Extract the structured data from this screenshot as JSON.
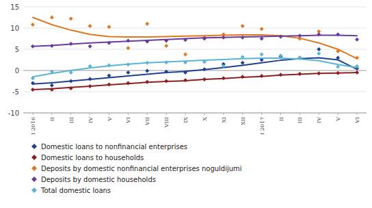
{
  "chart_data": {
    "type": "line",
    "categories": [
      "I 2016",
      "II",
      "III",
      "IV",
      "V",
      "VI",
      "VII",
      "VIII",
      "IX",
      "X",
      "XI",
      "XII",
      "I 2017",
      "II",
      "III",
      "IV",
      "V",
      "VI"
    ],
    "series": [
      {
        "name": "Domestic loans to nonfinancial enterprises",
        "color": "#1f3f8f",
        "marker": "diamond",
        "values": [
          -3.2,
          -2.9,
          -2.5,
          -2.1,
          -1.7,
          -1.3,
          -0.9,
          -0.5,
          -0.2,
          0.2,
          0.7,
          1.2,
          1.8,
          2.4,
          2.8,
          3.0,
          2.5,
          0.3
        ],
        "points": [
          -3.0,
          -3.5,
          -2.5,
          -2.0,
          -1.2,
          -0.5,
          -0.1,
          -0.3,
          -0.5,
          0.3,
          1.5,
          1.8,
          2.5,
          3.3,
          3.0,
          5.0,
          3.0,
          0.5
        ]
      },
      {
        "name": "Domestic loans to households",
        "color": "#8b2020",
        "marker": "diamond",
        "values": [
          -4.5,
          -4.3,
          -4.0,
          -3.7,
          -3.4,
          -3.1,
          -2.8,
          -2.6,
          -2.4,
          -2.1,
          -1.9,
          -1.6,
          -1.4,
          -1.1,
          -0.9,
          -0.7,
          -0.6,
          -0.5
        ],
        "points": [
          -4.5,
          -4.5,
          -4.2,
          -3.7,
          -3.3,
          -3.0,
          -2.7,
          -2.5,
          -2.3,
          -2.1,
          -1.8,
          -1.5,
          -1.3,
          -1.0,
          -0.8,
          -0.7,
          -0.6,
          -0.5
        ]
      },
      {
        "name": "Deposits by domestic nonfinancial enterprises noguldijumi",
        "color": "#e07820",
        "marker": "diamond",
        "values": [
          12.5,
          10.8,
          9.5,
          8.5,
          8.0,
          7.9,
          7.9,
          8.0,
          8.1,
          8.2,
          8.3,
          8.4,
          8.4,
          8.2,
          7.6,
          6.5,
          5.0,
          2.8
        ],
        "points": [
          10.8,
          12.5,
          12.2,
          10.5,
          10.3,
          5.3,
          11.0,
          5.8,
          3.8,
          7.8,
          8.5,
          10.5,
          9.8,
          8.0,
          7.5,
          9.2,
          4.5,
          3.0
        ]
      },
      {
        "name": "Deposits by domestic households",
        "color": "#6b3a9a",
        "marker": "diamond",
        "values": [
          5.7,
          5.9,
          6.2,
          6.5,
          6.7,
          6.9,
          7.1,
          7.3,
          7.5,
          7.7,
          7.8,
          7.9,
          8.0,
          8.1,
          8.2,
          8.3,
          8.3,
          8.2
        ],
        "points": [
          5.7,
          5.8,
          6.3,
          5.7,
          6.5,
          7.0,
          6.8,
          7.0,
          7.2,
          7.5,
          7.8,
          7.8,
          7.5,
          8.0,
          8.2,
          8.5,
          8.5,
          7.3
        ]
      },
      {
        "name": "Total domestic loans",
        "color": "#5ab4d4",
        "marker": "diamond",
        "values": [
          -1.5,
          -0.7,
          0.0,
          0.6,
          1.1,
          1.5,
          1.8,
          2.0,
          2.2,
          2.4,
          2.6,
          2.8,
          2.9,
          2.9,
          2.7,
          2.3,
          1.4,
          0.7
        ],
        "points": [
          -1.8,
          -0.3,
          -0.5,
          1.0,
          1.2,
          1.4,
          1.8,
          1.9,
          1.9,
          2.0,
          1.0,
          3.2,
          3.8,
          3.5,
          3.0,
          4.0,
          0.9,
          1.0
        ]
      }
    ],
    "ylim": [
      -10,
      15
    ],
    "yticks": [
      -10,
      -5,
      0,
      5,
      10,
      15
    ],
    "grid": true,
    "legend": "bottom"
  }
}
